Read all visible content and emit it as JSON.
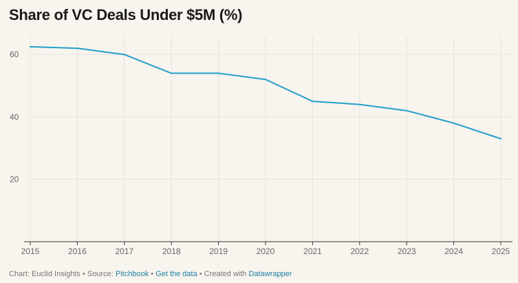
{
  "chart_data": {
    "type": "line",
    "title": "Share of VC Deals Under $5M (%)",
    "xlabel": "",
    "ylabel": "",
    "x": [
      "2015",
      "2016",
      "2017",
      "2018",
      "2019",
      "2020",
      "2021",
      "2022",
      "2023",
      "2024",
      "2025"
    ],
    "series": [
      {
        "name": "Share of VC Deals Under $5M (%)",
        "values": [
          62.5,
          62,
          60,
          54,
          54,
          52,
          45,
          44,
          42,
          38,
          33
        ]
      }
    ],
    "ylim": [
      0,
      66
    ],
    "yticks": [
      20,
      40,
      60
    ],
    "grid": true,
    "line_color": "#229fcc"
  },
  "footer": {
    "prefix": "Chart: Euclid Insights • Source: ",
    "source_link": "Pitchbook",
    "sep1": " • ",
    "data_link": "Get the data",
    "sep2": " • Created with ",
    "tool_link": "Datawrapper"
  }
}
